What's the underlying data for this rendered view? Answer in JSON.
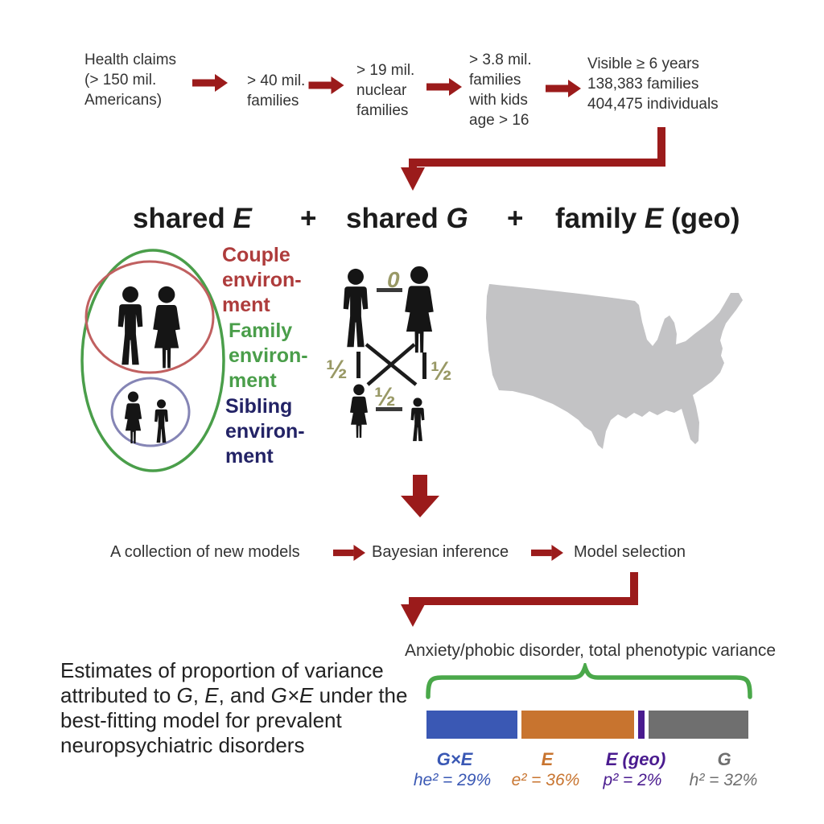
{
  "colors": {
    "arrow": "#9b1b1b",
    "couple": "#ae3c3c",
    "family": "#4a9e4a",
    "sibling": "#232366",
    "half": "#999966",
    "map": "#c3c3c5",
    "brace": "#4aa84a",
    "ellipse_green": "#4a9e4a",
    "circle_red": "#c06060",
    "circle_blue": "#8585b5",
    "silhouette": "#151515"
  },
  "flow": {
    "steps": [
      {
        "text": "Health claims\n(> 150 mil.\nAmericans)"
      },
      {
        "text": "> 40 mil.\nfamilies"
      },
      {
        "text": "> 19 mil.\nnuclear\nfamilies"
      },
      {
        "text": "> 3.8 mil.\nfamilies\nwith kids\nage > 16"
      },
      {
        "text": "Visible ≥ 6 years\n138,383 families\n404,475 individuals"
      }
    ]
  },
  "model_heading": {
    "shared1": "shared ",
    "e1": "E",
    "plus1": "+",
    "shared2": "shared ",
    "g1": "G",
    "plus2": "+",
    "family": "family ",
    "e2": "E",
    "geo": " (geo)"
  },
  "environments": {
    "couple": "Couple\nenviron-\nment",
    "family": "Family\nenviron-\nment",
    "sibling": "Sibling\nenviron-\nment"
  },
  "pedigree": {
    "zero": "0",
    "half_left": "½",
    "half_right": "½",
    "half_center": "½"
  },
  "pipeline": {
    "step1": "A collection of new models",
    "step2": "Bayesian inference",
    "step3": "Model selection"
  },
  "caption": {
    "line1": "Estimates of proportion of variance",
    "line2_t1": "attributed to ",
    "line2_i1": "G",
    "line2_t2": ", ",
    "line2_i2": "E",
    "line2_t3": ", and ",
    "line2_i3": "G×E",
    "line2_t4": " under the",
    "line3": "best-fitting model for prevalent",
    "line4": "neuropsychiatric disorders"
  },
  "chart_data": {
    "type": "bar",
    "title": "Anxiety/phobic disorder, total phenotypic variance",
    "orientation": "horizontal-stacked",
    "categories": [
      "G×E",
      "E",
      "E (geo)",
      "G"
    ],
    "values": [
      29,
      36,
      2,
      32
    ],
    "value_labels": [
      "he² = 29%",
      "e² = 36%",
      "p² = 2%",
      "h² = 32%"
    ],
    "colors": [
      "#3a58b4",
      "#c8742f",
      "#4a1b8f",
      "#6f6f6f"
    ],
    "unit": "%"
  }
}
